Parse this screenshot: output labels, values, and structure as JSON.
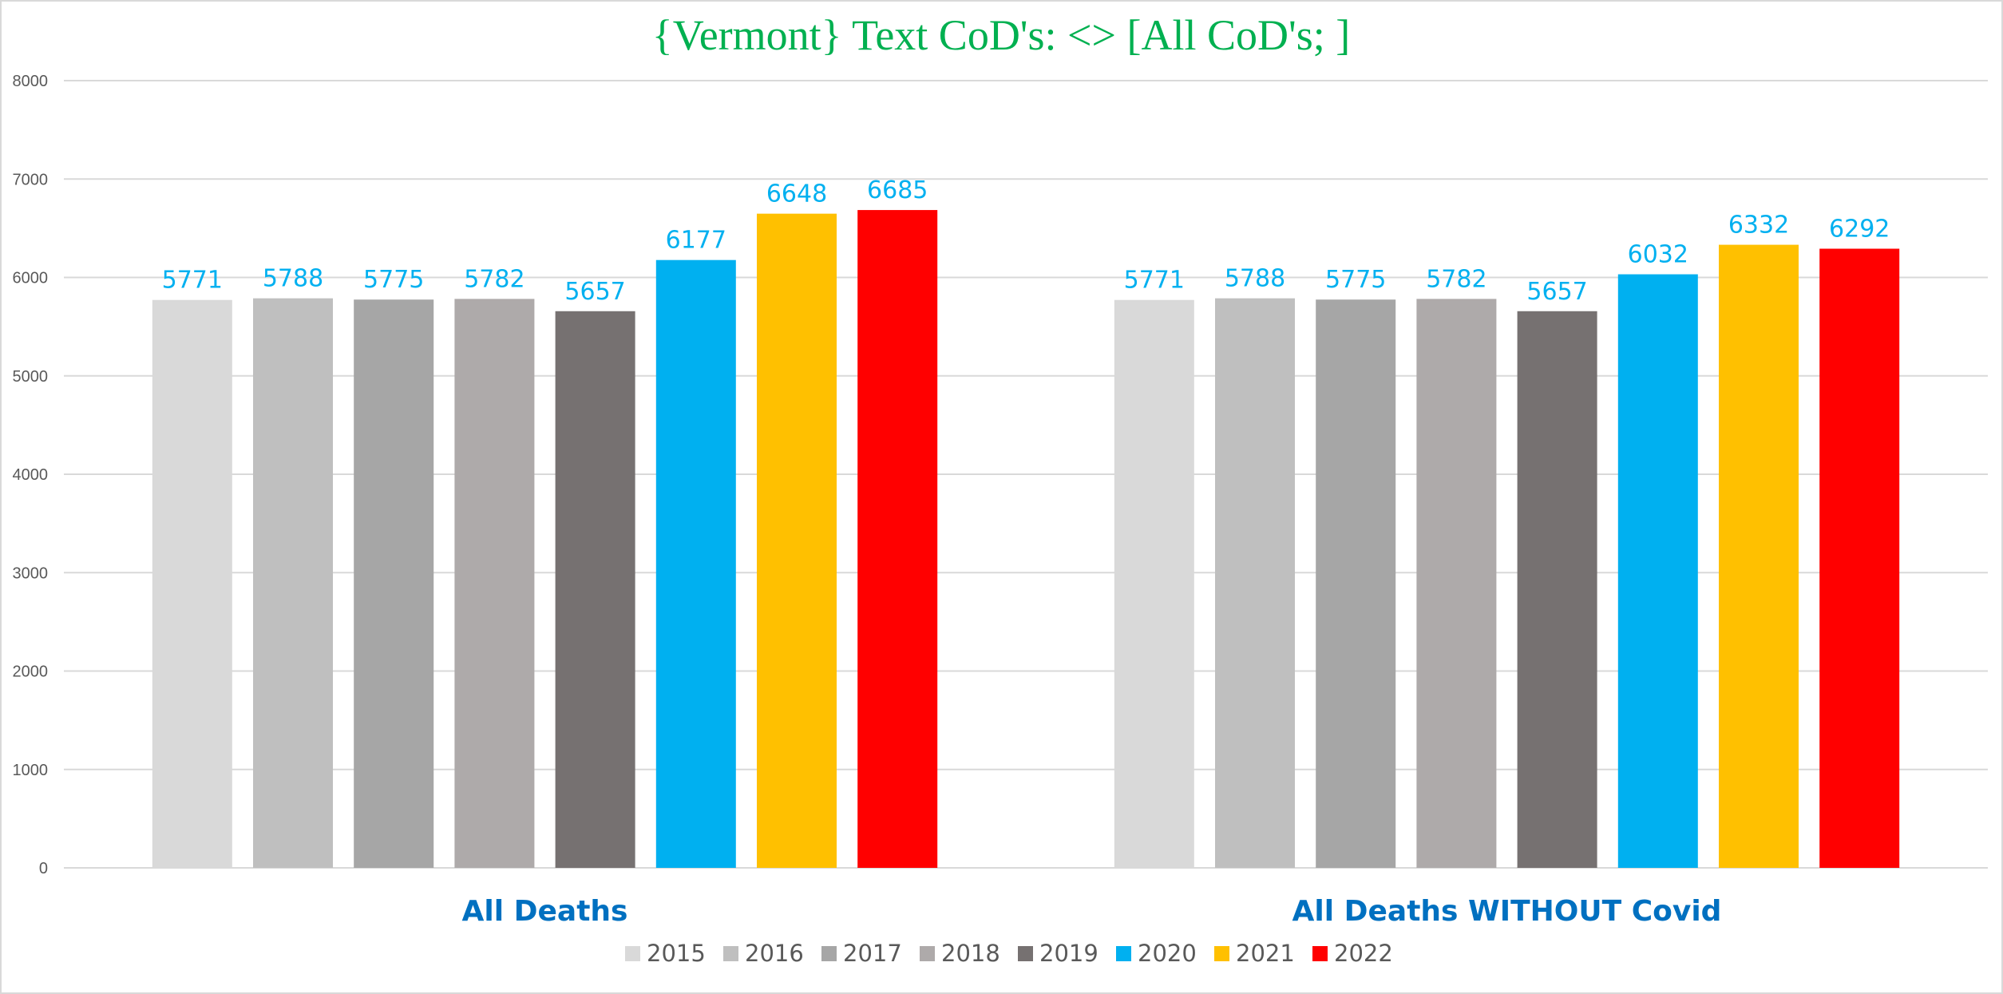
{
  "chart_data": {
    "type": "bar",
    "title": "{Vermont}   Text CoD's: <> [All CoD's; ]",
    "xlabel": "",
    "ylabel": "",
    "ylim": [
      0,
      8000
    ],
    "yticks": [
      0,
      1000,
      2000,
      3000,
      4000,
      5000,
      6000,
      7000,
      8000
    ],
    "grid": true,
    "legend_position": "bottom",
    "data_labels": true,
    "categories": [
      "All Deaths",
      "All Deaths WITHOUT Covid"
    ],
    "series": [
      {
        "name": "2015",
        "color": "#d9d9d9",
        "values": [
          5771,
          5771
        ]
      },
      {
        "name": "2016",
        "color": "#bfbfbf",
        "values": [
          5788,
          5788
        ]
      },
      {
        "name": "2017",
        "color": "#a6a6a6",
        "values": [
          5775,
          5775
        ]
      },
      {
        "name": "2018",
        "color": "#aeaaaa",
        "values": [
          5782,
          5782
        ]
      },
      {
        "name": "2019",
        "color": "#767171",
        "values": [
          5657,
          5657
        ]
      },
      {
        "name": "2020",
        "color": "#00b0f0",
        "values": [
          6177,
          6032
        ]
      },
      {
        "name": "2021",
        "color": "#ffc000",
        "values": [
          6648,
          6332
        ]
      },
      {
        "name": "2022",
        "color": "#ff0000",
        "values": [
          6685,
          6292
        ]
      }
    ],
    "colors": {
      "title": "#00b050",
      "data_label": "#00b0f0",
      "category_label": "#0070c0",
      "gridline": "#d9d9d9",
      "axis_text": "#595959"
    }
  }
}
